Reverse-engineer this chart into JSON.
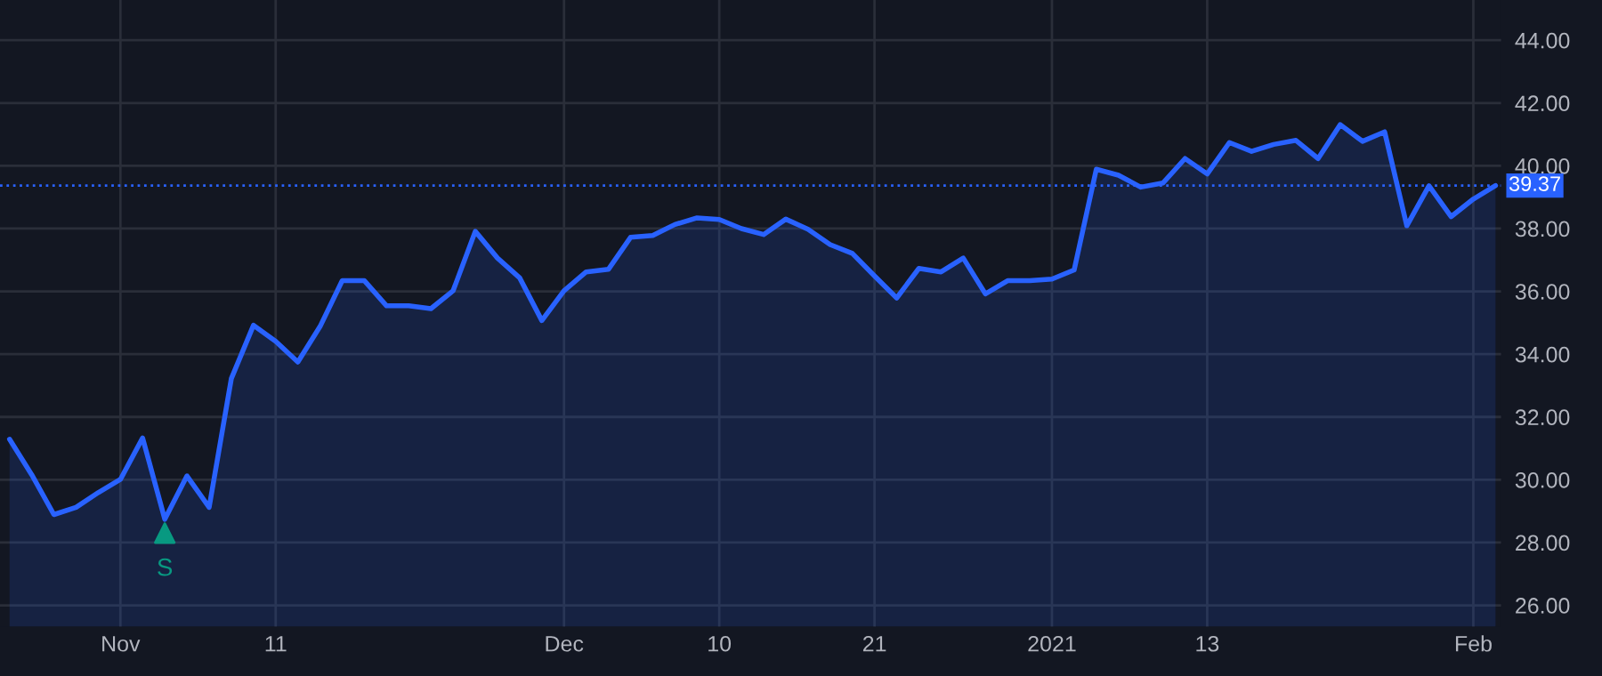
{
  "chart_data": {
    "type": "area",
    "categories": [
      null,
      null,
      null,
      null,
      null,
      "Nov",
      null,
      null,
      null,
      null,
      null,
      null,
      "11",
      null,
      null,
      null,
      null,
      null,
      null,
      null,
      null,
      null,
      null,
      null,
      null,
      "Dec",
      null,
      null,
      null,
      null,
      null,
      null,
      "10",
      null,
      null,
      null,
      null,
      null,
      null,
      "21",
      null,
      null,
      null,
      null,
      null,
      null,
      null,
      "2021",
      null,
      null,
      null,
      null,
      null,
      null,
      "13",
      null,
      null,
      null,
      null,
      null,
      null,
      null,
      null,
      null,
      null,
      null,
      "Feb",
      null
    ],
    "series": [
      {
        "color": "#2962ff",
        "values": [
          31.29,
          30.16,
          28.89,
          29.12,
          29.59,
          30.01,
          31.33,
          28.74,
          30.12,
          29.12,
          33.22,
          34.92,
          34.41,
          33.75,
          34.88,
          36.34,
          36.34,
          35.54,
          35.54,
          35.45,
          36.02,
          37.91,
          37.06,
          36.43,
          35.07,
          36.02,
          36.62,
          36.7,
          37.72,
          37.78,
          38.13,
          38.34,
          38.29,
          38.0,
          37.81,
          38.3,
          37.98,
          37.49,
          37.21,
          36.49,
          35.79,
          36.73,
          36.62,
          37.06,
          35.92,
          36.34,
          36.34,
          36.39,
          36.68,
          39.89,
          39.7,
          39.32,
          39.45,
          40.23,
          39.74,
          40.74,
          40.46,
          40.68,
          40.81,
          40.23,
          41.31,
          40.78,
          41.08,
          38.09,
          39.36,
          38.38,
          38.94,
          39.37
        ]
      },
      {
        "type": "scatter",
        "color": "#089981",
        "marker": "triangle",
        "values": [
          null,
          null,
          null,
          null,
          null,
          null,
          null,
          28.3,
          null,
          null,
          null,
          null,
          null,
          null,
          null,
          null,
          null,
          null,
          null,
          null,
          null,
          null,
          null,
          null,
          null,
          null,
          null,
          null,
          null,
          null,
          null,
          null,
          null,
          null,
          null,
          null,
          null,
          null,
          null,
          null,
          null,
          null,
          null,
          null,
          null,
          null,
          null,
          null,
          null,
          null,
          null,
          null,
          null,
          null,
          null,
          null,
          null,
          null,
          null,
          null,
          null,
          null,
          null,
          null,
          null,
          null,
          null,
          null
        ]
      }
    ],
    "annotations": [
      "S"
    ],
    "ref_lines": [
      {
        "axis": "y",
        "value": 39.37,
        "label": "39.37",
        "color": "#2962ff",
        "line_style": "dotted"
      }
    ],
    "ylim": [
      25.32,
      45.28
    ],
    "yticks": [
      {
        "value": 26,
        "label": "26.00"
      },
      {
        "value": 28,
        "label": "28.00"
      },
      {
        "value": 30,
        "label": "30.00"
      },
      {
        "value": 32,
        "label": "32.00"
      },
      {
        "value": 34,
        "label": "34.00"
      },
      {
        "value": 36,
        "label": "36.00"
      },
      {
        "value": 38,
        "label": "38.00"
      },
      {
        "value": 40,
        "label": "40.00"
      },
      {
        "value": 42,
        "label": "42.00"
      },
      {
        "value": 44,
        "label": "44.00"
      }
    ],
    "grid": true,
    "marker": "none",
    "line_style": "solid"
  }
}
